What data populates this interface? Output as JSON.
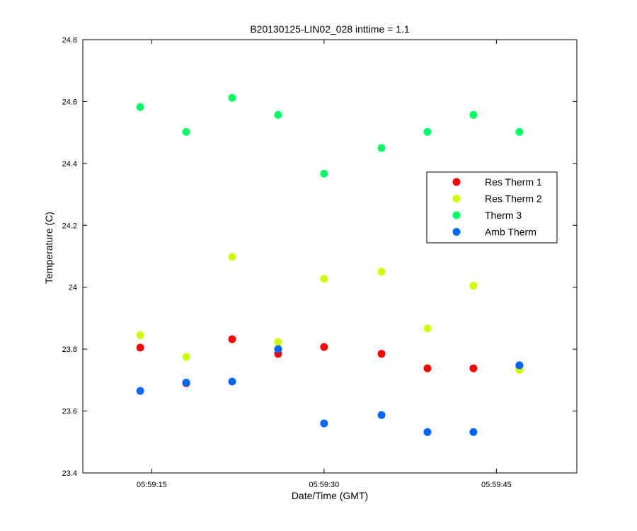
{
  "chart_data": {
    "type": "scatter",
    "title": "B20130125-LIN02_028 inttime = 1.1",
    "xlabel": "Date/Time (GMT)",
    "ylabel": "Temperature (C)",
    "x_unit": "time HH:MM:SS",
    "xlim": [
      "05:59:09",
      "05:59:52"
    ],
    "ylim": [
      23.4,
      24.8
    ],
    "x_ticks": [
      "05:59:15",
      "05:59:30",
      "05:59:45"
    ],
    "y_ticks": [
      23.4,
      23.6,
      23.8,
      24,
      24.2,
      24.4,
      24.6,
      24.8
    ],
    "y_tick_labels": [
      "23.4",
      "23.6",
      "23.8",
      "24",
      "24.2",
      "24.4",
      "24.6",
      "24.8"
    ],
    "x": [
      "05:59:14",
      "05:59:18",
      "05:59:22",
      "05:59:26",
      "05:59:30",
      "05:59:35",
      "05:59:39",
      "05:59:43",
      "05:59:47"
    ],
    "grid": false,
    "legend_position": "upper-right",
    "series": [
      {
        "name": "Res Therm 1",
        "color": "#ff0000",
        "y": [
          23.805,
          23.69,
          23.832,
          23.785,
          23.807,
          23.785,
          23.738,
          23.738,
          23.745
        ]
      },
      {
        "name": "Res Therm 2",
        "color": "#ccff00",
        "y": [
          23.845,
          23.775,
          24.098,
          23.823,
          24.027,
          24.05,
          23.867,
          24.005,
          23.733
        ]
      },
      {
        "name": "Therm 3",
        "color": "#00ff66",
        "y": [
          24.582,
          24.502,
          24.612,
          24.557,
          24.367,
          24.45,
          24.502,
          24.557,
          24.502
        ]
      },
      {
        "name": "Amb Therm",
        "color": "#0066ff",
        "y": [
          23.665,
          23.692,
          23.695,
          23.8,
          23.56,
          23.587,
          23.532,
          23.532,
          23.748
        ]
      }
    ]
  }
}
